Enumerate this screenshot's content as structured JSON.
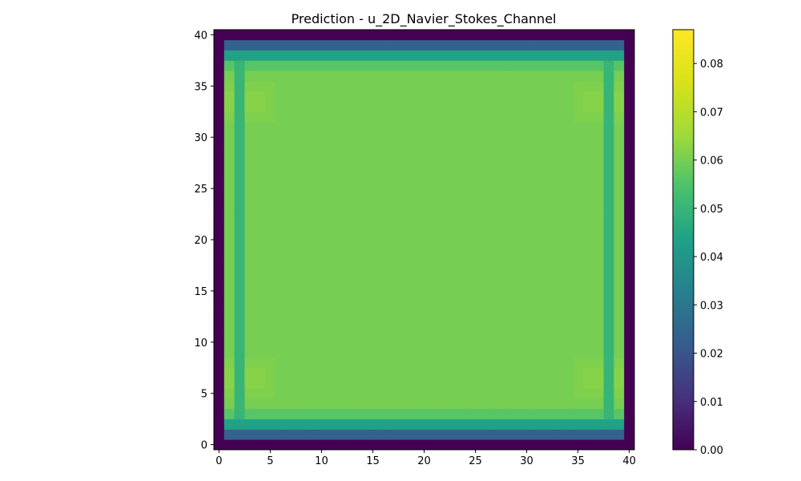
{
  "chart_data": {
    "type": "heatmap",
    "title": "Prediction - u_2D_Navier_Stokes_Channel",
    "xlabel": "",
    "ylabel": "",
    "grid_size": [
      41,
      41
    ],
    "xlim": [
      -0.5,
      40.5
    ],
    "ylim": [
      -0.5,
      40.5
    ],
    "x_ticks": [
      "0",
      "5",
      "10",
      "15",
      "20",
      "25",
      "30",
      "35",
      "40"
    ],
    "y_ticks": [
      "0",
      "5",
      "10",
      "15",
      "20",
      "25",
      "30",
      "35",
      "40"
    ],
    "colormap": "viridis",
    "color_range": [
      0.0,
      0.087
    ],
    "colorbar_ticks": [
      "0.00",
      "0.01",
      "0.02",
      "0.03",
      "0.04",
      "0.05",
      "0.06",
      "0.07",
      "0.08"
    ],
    "grid": false,
    "field_model": {
      "boundary_value": 0.0,
      "column_profile": [
        0.0,
        0.087,
        0.05,
        0.066,
        0.062,
        0.061,
        0.06,
        0.06,
        0.06,
        0.06,
        0.06
      ],
      "row_profile": [
        0.0,
        0.024,
        0.044,
        0.056,
        0.06,
        0.061,
        0.062,
        0.062,
        0.061,
        0.06,
        0.06
      ]
    }
  }
}
